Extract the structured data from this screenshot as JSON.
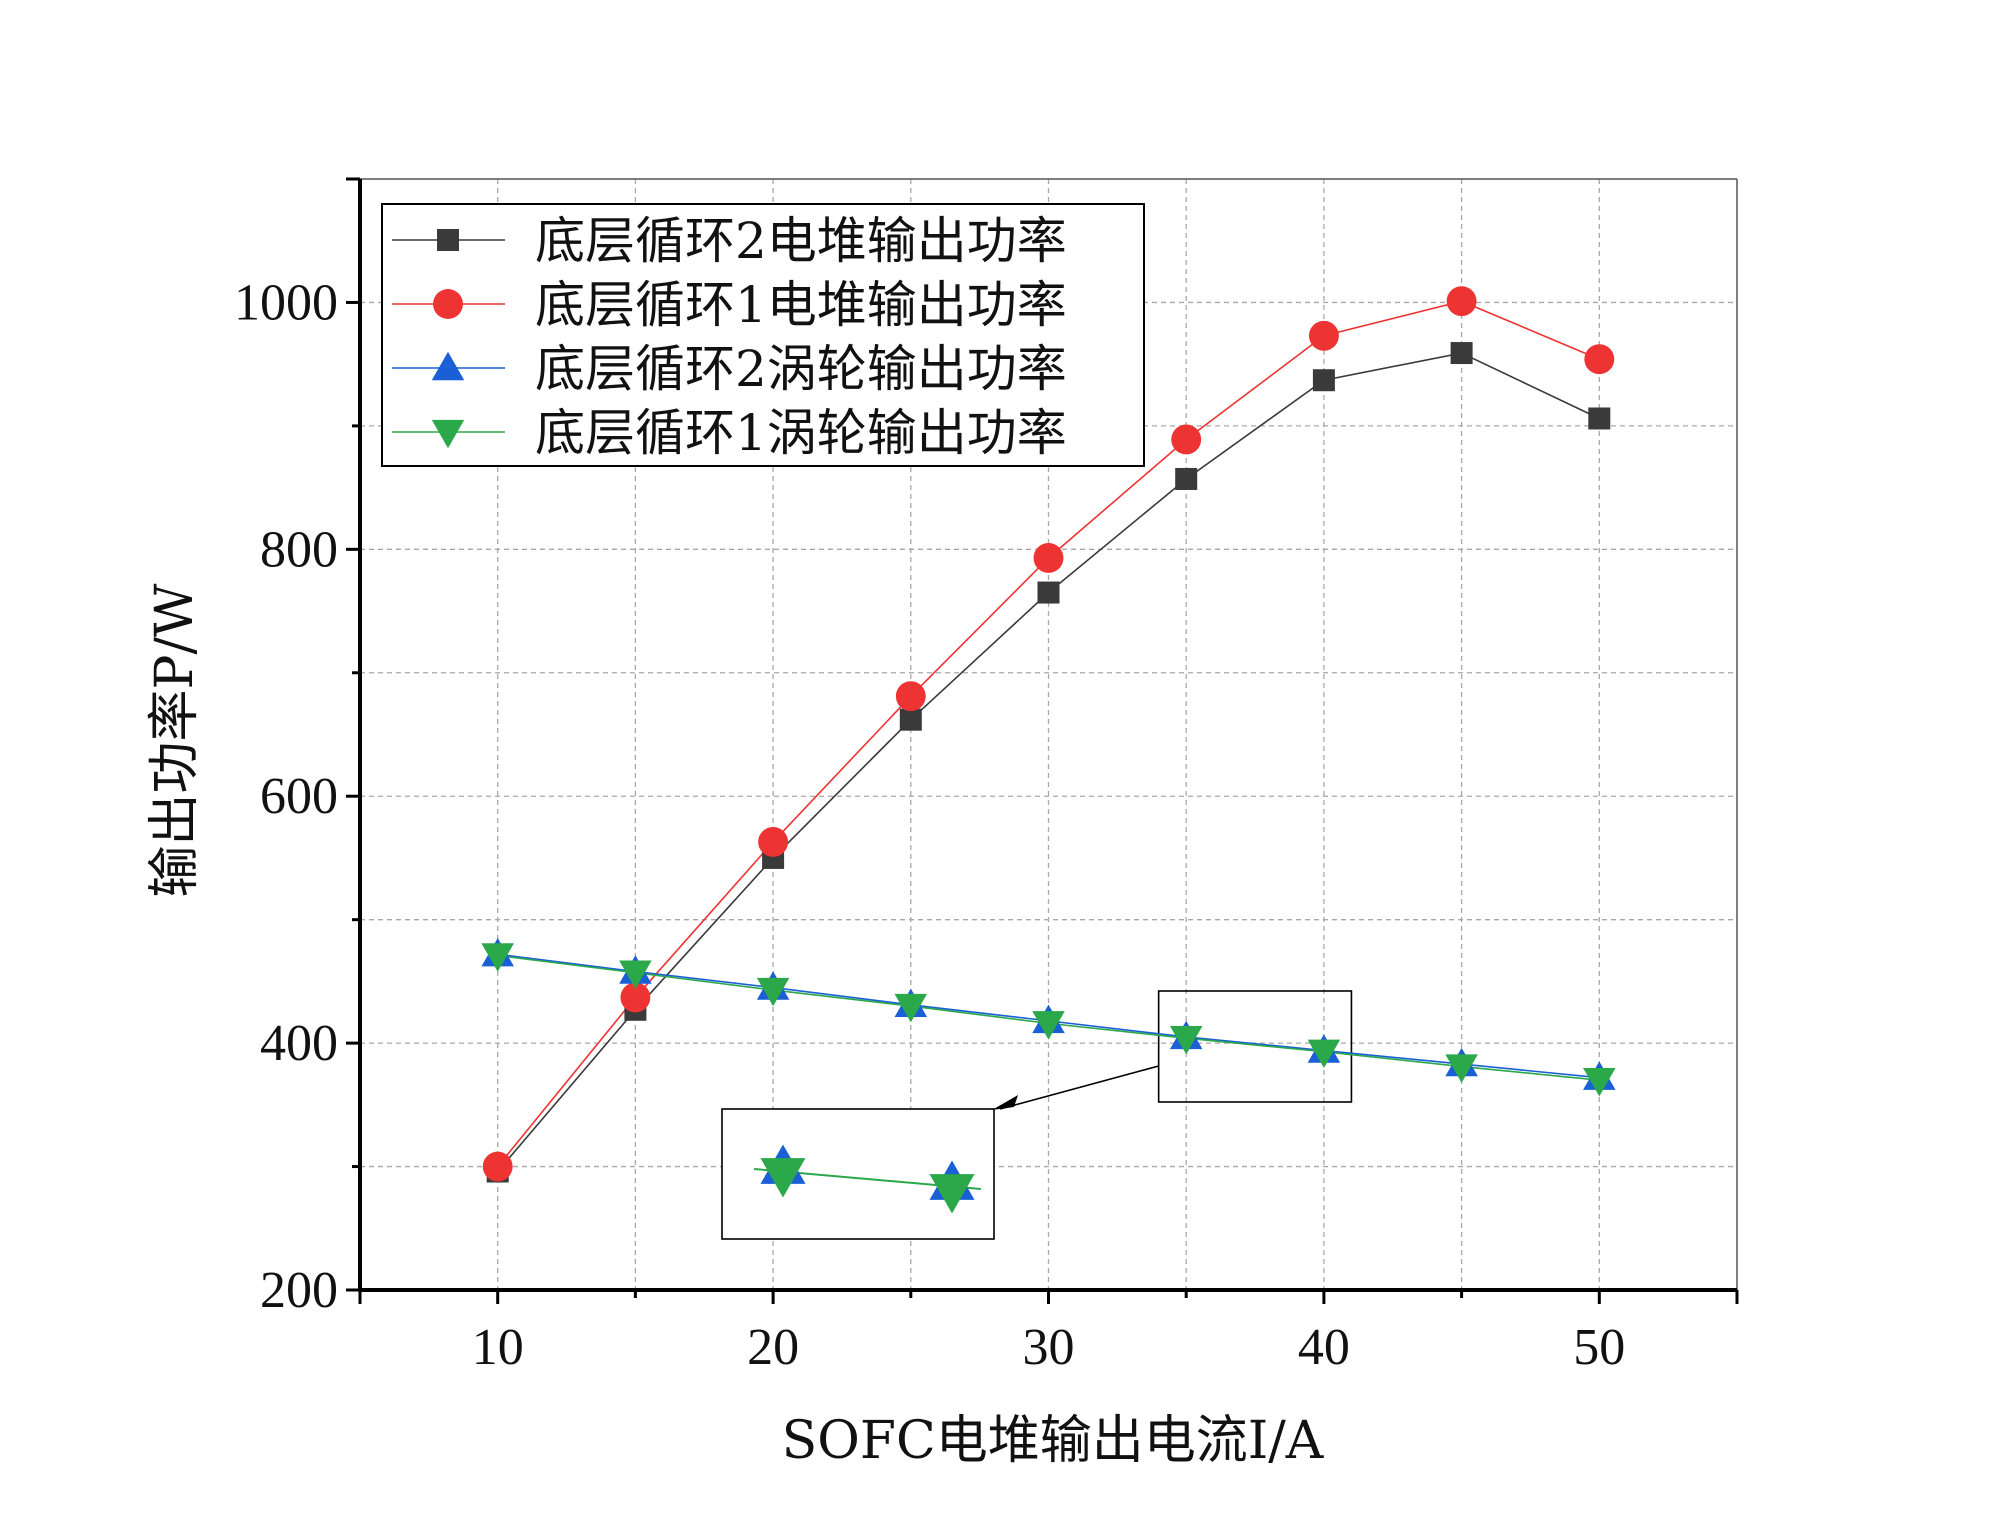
{
  "chart_data": {
    "type": "line",
    "xlabel": "SOFC电堆输出电流I/A",
    "ylabel": "输出功率P/W",
    "xlim": [
      5,
      55
    ],
    "ylim": [
      200,
      1100
    ],
    "xticks": [
      10,
      20,
      30,
      40,
      50
    ],
    "yticks": [
      200,
      400,
      600,
      800,
      1000
    ],
    "x_minor_ticks": [
      15,
      25,
      35,
      45
    ],
    "y_minor_ticks": [
      300,
      500,
      700,
      900
    ],
    "grid": true,
    "legend_position": "top-left",
    "x": [
      10,
      15,
      20,
      25,
      30,
      35,
      40,
      45,
      50
    ],
    "series": [
      {
        "name": "底层循环2电堆输出功率",
        "marker": "square",
        "color": "#3a3a3a",
        "values": [
          296,
          427,
          550,
          662,
          765,
          857,
          937,
          959,
          906
        ]
      },
      {
        "name": "底层循环1电堆输出功率",
        "marker": "circle",
        "color": "#ee3333",
        "values": [
          300,
          437,
          563,
          681,
          793,
          889,
          973,
          1001,
          954
        ]
      },
      {
        "name": "底层循环2涡轮输出功率",
        "marker": "triangle-up",
        "color": "#1a5fd6",
        "values": [
          472,
          458,
          445,
          431,
          418,
          405,
          394,
          383,
          372
        ]
      },
      {
        "name": "底层循环1涡轮输出功率",
        "marker": "triangle-down",
        "color": "#2aa84a",
        "values": [
          471,
          457,
          443,
          430,
          416,
          404,
          393,
          381,
          370
        ]
      }
    ],
    "annotations": [
      {
        "type": "zoom-inset",
        "source_x_range": [
          34,
          41
        ],
        "description": "magnified view of turbine output series"
      }
    ]
  }
}
